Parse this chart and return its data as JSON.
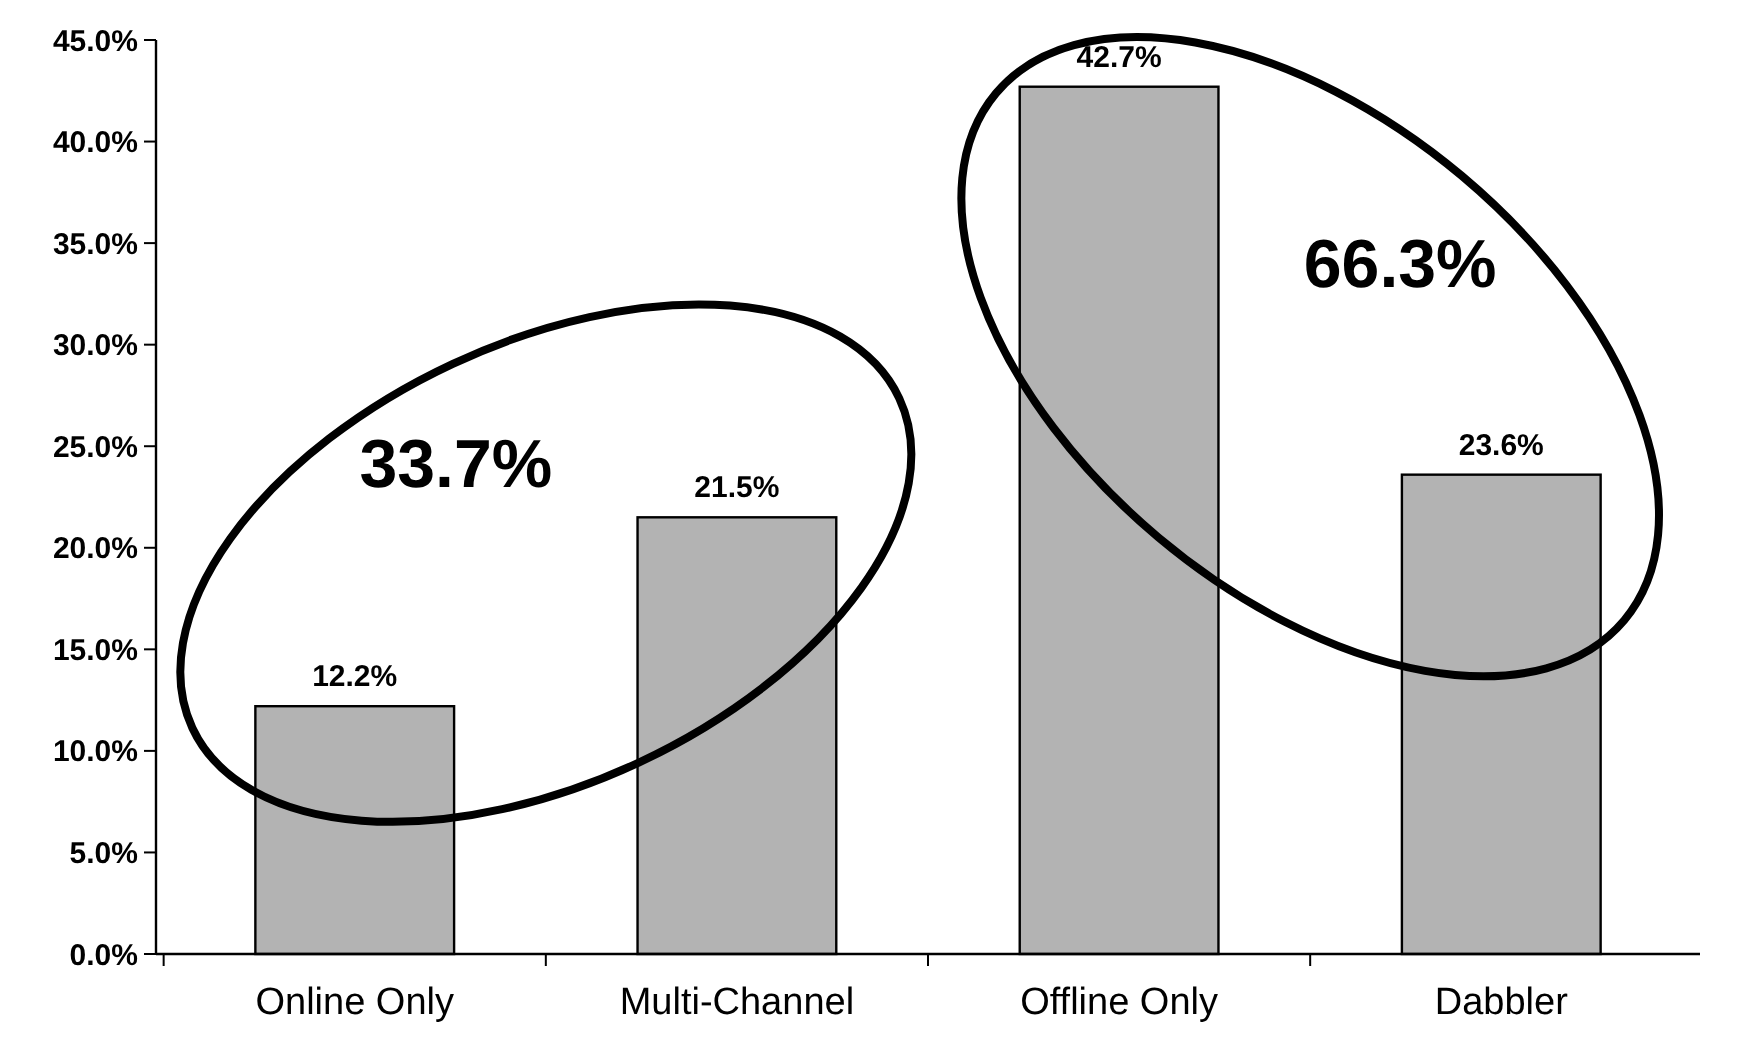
{
  "chart_data": {
    "type": "bar",
    "categories": [
      "Online Only",
      "Multi-Channel",
      "Offline Only",
      "Dabbler"
    ],
    "values": [
      12.2,
      21.5,
      42.7,
      23.6
    ],
    "color": "#b3b3b3",
    "value_labels": [
      "12.2%",
      "21.5%",
      "42.7%",
      "23.6%"
    ],
    "ylim": [
      0,
      45
    ],
    "yticks": [
      {
        "value": 0,
        "label": "0.0%"
      },
      {
        "value": 5,
        "label": "5.0%"
      },
      {
        "value": 10,
        "label": "10.0%"
      },
      {
        "value": 15,
        "label": "15.0%"
      },
      {
        "value": 20,
        "label": "20.0%"
      },
      {
        "value": 25,
        "label": "25.0%"
      },
      {
        "value": 30,
        "label": "30.0%"
      },
      {
        "value": 35,
        "label": "35.0%"
      },
      {
        "value": 40,
        "label": "40.0%"
      },
      {
        "value": 45,
        "label": "45.0%"
      }
    ],
    "annotations": [
      "33.7%",
      "66.3%"
    ],
    "grid": false
  }
}
